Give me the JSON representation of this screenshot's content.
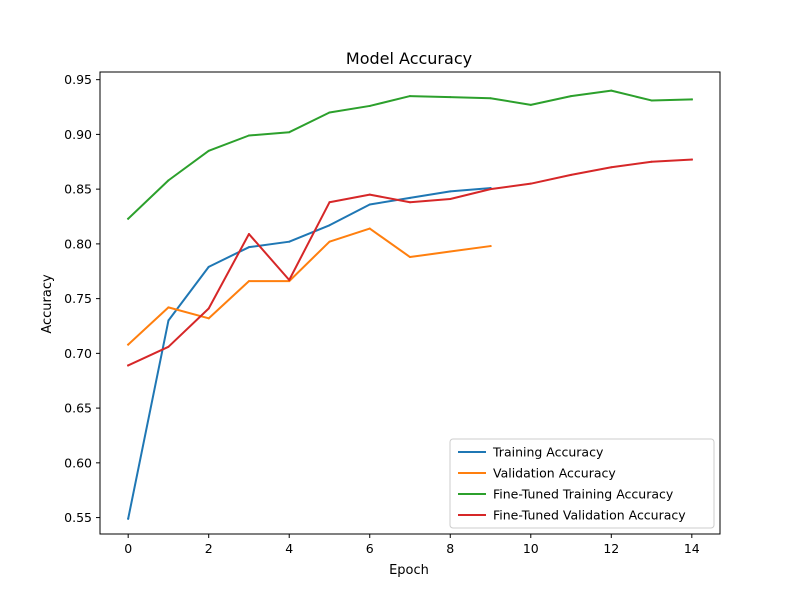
{
  "chart_data": {
    "type": "line",
    "title": "Model Accuracy",
    "xlabel": "Epoch",
    "ylabel": "Accuracy",
    "xlim": [
      -0.7,
      14.7
    ],
    "ylim": [
      0.535,
      0.957
    ],
    "xticks": [
      0,
      2,
      4,
      6,
      8,
      10,
      12,
      14
    ],
    "yticks": [
      0.55,
      0.6,
      0.65,
      0.7,
      0.75,
      0.8,
      0.85,
      0.9,
      0.95
    ],
    "ytick_labels": [
      "0.55",
      "0.60",
      "0.65",
      "0.70",
      "0.75",
      "0.80",
      "0.85",
      "0.90",
      "0.95"
    ],
    "grid": false,
    "legend_position": "lower right",
    "series": [
      {
        "name": "Training Accuracy",
        "color": "#1f77b4",
        "x": [
          0,
          1,
          2,
          3,
          4,
          5,
          6,
          7,
          8,
          9
        ],
        "values": [
          0.549,
          0.73,
          0.779,
          0.797,
          0.802,
          0.817,
          0.836,
          0.842,
          0.848,
          0.851
        ]
      },
      {
        "name": "Validation Accuracy",
        "color": "#ff7f0e",
        "x": [
          0,
          1,
          2,
          3,
          4,
          5,
          6,
          7,
          8,
          9
        ],
        "values": [
          0.708,
          0.742,
          0.732,
          0.766,
          0.766,
          0.802,
          0.814,
          0.788,
          0.793,
          0.798
        ]
      },
      {
        "name": "Fine-Tuned Training Accuracy",
        "color": "#2ca02c",
        "x": [
          0,
          1,
          2,
          3,
          4,
          5,
          6,
          7,
          8,
          9,
          10,
          11,
          12,
          13,
          14
        ],
        "values": [
          0.823,
          0.858,
          0.885,
          0.899,
          0.902,
          0.92,
          0.926,
          0.935,
          0.934,
          0.933,
          0.927,
          0.935,
          0.94,
          0.931,
          0.932
        ]
      },
      {
        "name": "Fine-Tuned Validation Accuracy",
        "color": "#d62728",
        "x": [
          0,
          1,
          2,
          3,
          4,
          5,
          6,
          7,
          8,
          9,
          10,
          11,
          12,
          13,
          14
        ],
        "values": [
          0.689,
          0.706,
          0.741,
          0.809,
          0.767,
          0.838,
          0.845,
          0.838,
          0.841,
          0.85,
          0.855,
          0.863,
          0.87,
          0.875,
          0.877
        ]
      }
    ]
  }
}
